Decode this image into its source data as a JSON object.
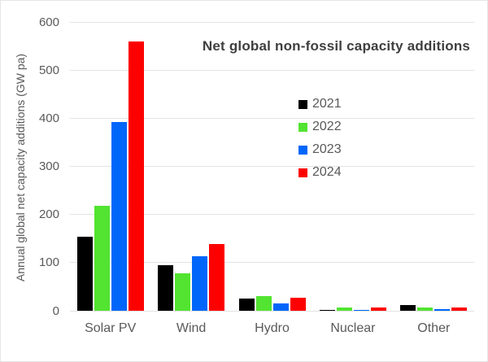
{
  "chart_data": {
    "type": "bar",
    "title": "Net global non-fossil capacity additions",
    "ylabel": "Annual global net capacity additions (GW pa)",
    "xlabel": "",
    "categories": [
      "Solar PV",
      "Wind",
      "Hydro",
      "Nuclear",
      "Other"
    ],
    "series": [
      {
        "name": "2021",
        "color": "#000000",
        "values": [
          153,
          95,
          25,
          2,
          11
        ]
      },
      {
        "name": "2022",
        "color": "#52e431",
        "values": [
          218,
          77,
          30,
          6,
          7
        ]
      },
      {
        "name": "2023",
        "color": "#0066fa",
        "values": [
          392,
          114,
          16,
          2,
          4
        ]
      },
      {
        "name": "2024",
        "color": "#fd0000",
        "values": [
          560,
          139,
          27,
          6,
          6
        ]
      }
    ],
    "y_ticks": [
      0,
      100,
      200,
      300,
      400,
      500,
      600
    ],
    "ylim": [
      0,
      600
    ],
    "grid": "horizontal",
    "legend_position": "center-right-inside",
    "colors": {
      "title_text": "#3f3f3f",
      "axis_text": "#595959",
      "gridline": "#e2e2e2"
    }
  }
}
